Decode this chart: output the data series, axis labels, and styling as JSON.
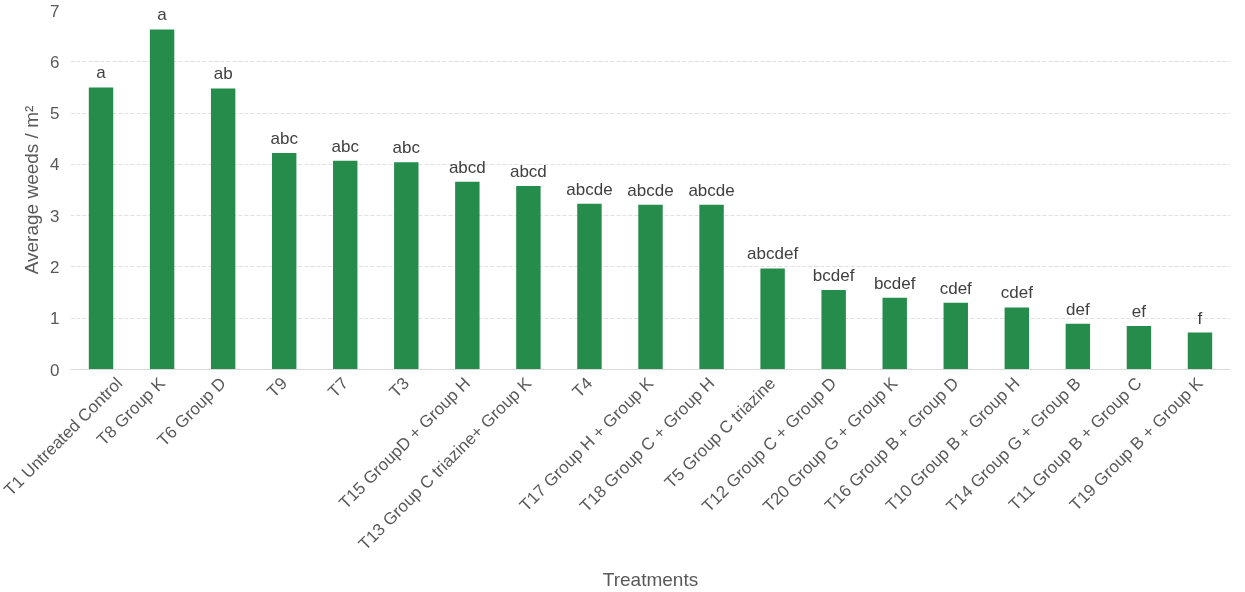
{
  "chart_data": {
    "type": "bar",
    "xlabel": "Treatments",
    "ylabel": "Average weeds / m²",
    "categories": [
      "T1 Untreated Control",
      "T8 Group K",
      "T6 Group D",
      "T9",
      "T7",
      "T3",
      "T15 GroupD + Group H",
      "T13 Group C triazine+ Group K",
      "T4",
      "T17 Group H + Group K",
      "T18 Group C + Group H",
      "T5 Group C triazine",
      "T12 Group C + Group D",
      "T20 Group G + Group K",
      "T16 Group B + Group D",
      "T10 Group B + Group H",
      "T14 Group G + Group B",
      "T11 Group B + Group C",
      "T19 Group B + Group K"
    ],
    "values": [
      5.5,
      6.63,
      5.48,
      4.22,
      4.07,
      4.04,
      3.66,
      3.58,
      3.23,
      3.21,
      3.21,
      1.97,
      1.55,
      1.4,
      1.3,
      1.21,
      0.89,
      0.85,
      0.72
    ],
    "value_labels": [
      "a",
      "a",
      "ab",
      "abc",
      "abc",
      "abc",
      "abcd",
      "abcd",
      "abcde",
      "abcde",
      "abcde",
      "abcdef",
      "bcdef",
      "bcdef",
      "cdef",
      "cdef",
      "def",
      "ef",
      "f"
    ],
    "color": "#268c4c",
    "ylim": [
      0,
      7
    ],
    "yticks": [
      0,
      1,
      2,
      3,
      4,
      5,
      6,
      7
    ],
    "grid": "y"
  }
}
